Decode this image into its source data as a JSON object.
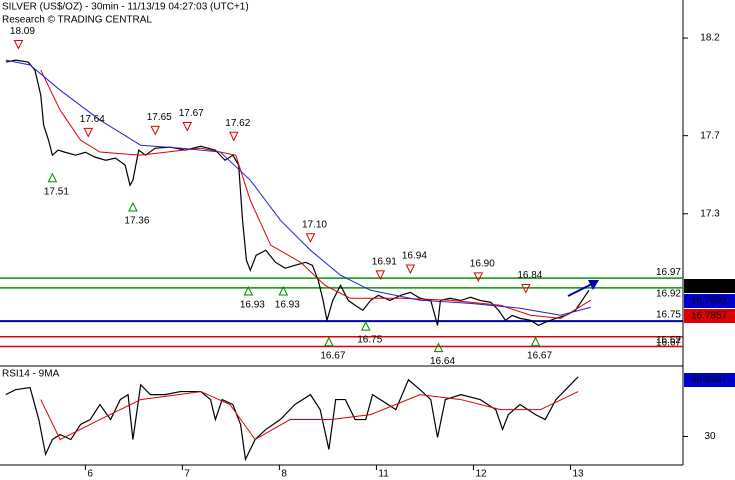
{
  "chart_data": [
    {
      "type": "line",
      "title": "SILVER (US$/OZ) - 30min - 11/13/19 04:27:03 (UTC+1)",
      "subtitle": "Research © TRADING CENTRAL",
      "xlim": [
        -0.88,
        6.16
      ],
      "ylim": [
        16.52,
        18.395
      ],
      "yticks": [
        18.2,
        17.7,
        17.3
      ],
      "series": [
        {
          "color": "#000000",
          "x": [
            -0.82,
            -0.72,
            -0.59,
            -0.52,
            -0.46,
            -0.43,
            -0.38,
            -0.34,
            -0.28,
            -0.21,
            -0.1,
            0.0,
            0.1,
            0.21,
            0.31,
            0.41,
            0.46,
            0.49,
            0.55,
            0.62,
            0.72,
            0.88,
            1.03,
            1.19,
            1.34,
            1.44,
            1.52,
            1.58,
            1.62,
            1.66,
            1.7,
            1.76,
            1.86,
            1.96,
            2.06,
            2.16,
            2.27,
            2.34,
            2.4,
            2.45,
            2.49,
            2.55,
            2.63,
            2.71,
            2.78,
            2.86,
            2.94,
            3.02,
            3.14,
            3.25,
            3.35,
            3.45,
            3.56,
            3.63,
            3.66,
            3.76,
            3.87,
            3.97,
            4.07,
            4.18,
            4.26,
            4.33,
            4.4,
            4.48,
            4.59,
            4.67,
            4.74,
            4.85,
            4.95,
            5.05,
            5.12,
            5.19
          ],
          "values": [
            18.077,
            18.087,
            18.077,
            18.036,
            17.908,
            17.754,
            17.677,
            17.6,
            17.626,
            17.615,
            17.6,
            17.615,
            17.59,
            17.574,
            17.585,
            17.549,
            17.446,
            17.472,
            17.626,
            17.6,
            17.636,
            17.641,
            17.626,
            17.646,
            17.626,
            17.574,
            17.6,
            17.549,
            17.267,
            17.062,
            17.01,
            17.087,
            17.113,
            17.051,
            17.021,
            17.036,
            17.051,
            17.036,
            16.959,
            16.856,
            16.754,
            16.856,
            16.933,
            16.856,
            16.831,
            16.805,
            16.856,
            16.882,
            16.856,
            16.882,
            16.897,
            16.867,
            16.856,
            16.728,
            16.856,
            16.867,
            16.856,
            16.872,
            16.856,
            16.846,
            16.805,
            16.754,
            16.779,
            16.764,
            16.754,
            16.728,
            16.744,
            16.764,
            16.779,
            16.805,
            16.856,
            16.908
          ]
        },
        {
          "color": "#dd0000",
          "x": [
            -0.46,
            -0.26,
            -0.05,
            0.15,
            0.57,
            1.19,
            1.55,
            1.7,
            1.91,
            2.22,
            2.47,
            2.73,
            3.25,
            3.76,
            4.28,
            4.59,
            4.9,
            5.21
          ],
          "values": [
            18.036,
            17.831,
            17.677,
            17.616,
            17.6,
            17.636,
            17.6,
            17.369,
            17.139,
            17.051,
            16.933,
            16.867,
            16.867,
            16.857,
            16.831,
            16.78,
            16.764,
            16.857
          ]
        },
        {
          "color": "#2222cc",
          "x": [
            -0.82,
            -0.57,
            -0.26,
            0.15,
            0.57,
            0.98,
            1.39,
            1.7,
            2.01,
            2.32,
            2.63,
            2.94,
            3.45,
            3.97,
            4.48,
            4.9,
            5.21
          ],
          "values": [
            18.087,
            18.062,
            17.933,
            17.78,
            17.651,
            17.636,
            17.616,
            17.472,
            17.267,
            17.113,
            16.985,
            16.908,
            16.857,
            16.841,
            16.816,
            16.78,
            16.821
          ]
        }
      ],
      "levels": {
        "values": [
          16.97,
          16.92,
          16.75,
          16.67,
          16.62
        ],
        "colors": [
          "#009900",
          "#009900",
          "#0000aa",
          "#dd0000",
          "#dd0000"
        ]
      },
      "highs": {
        "x": [
          -0.69,
          0.03,
          0.72,
          1.05,
          1.53,
          2.32,
          3.04,
          3.35,
          4.05,
          4.54
        ],
        "values": [
          18.09,
          17.64,
          17.65,
          17.67,
          17.62,
          17.1,
          16.91,
          16.94,
          16.9,
          16.84
        ],
        "value_labels": [
          "18.09",
          "17.64",
          "17.65",
          "17.67",
          "17.62",
          "17.10",
          "16.91",
          "16.94",
          "16.90",
          "16.84"
        ],
        "color": "#dd0000"
      },
      "lows": {
        "x": [
          -0.34,
          0.49,
          1.68,
          2.04,
          2.51,
          2.89,
          3.64,
          4.64
        ],
        "values": [
          17.51,
          17.36,
          16.93,
          16.93,
          16.67,
          16.75,
          16.64,
          16.67
        ],
        "value_labels": [
          "17.51",
          "17.36",
          "16.93",
          "16.93",
          "16.67",
          "16.75",
          "16.64",
          "16.67"
        ],
        "color": "#008800"
      },
      "last_values": {
        "values": [
          16.841,
          16.7892,
          16.7857
        ],
        "colors": [
          "#000000",
          "#0000cc",
          "#dd0000"
        ]
      }
    },
    {
      "type": "line",
      "title": "RSI14 - 9MA",
      "xlim": [
        -0.88,
        6.16
      ],
      "xticks": [
        {
          "value": 0,
          "label": "6"
        },
        {
          "value": 1,
          "label": "7"
        },
        {
          "value": 2,
          "label": "8"
        },
        {
          "value": 3,
          "label": "11"
        },
        {
          "value": 4,
          "label": "12"
        },
        {
          "value": 5,
          "label": "13"
        }
      ],
      "ylim": [
        15,
        66
      ],
      "yticks": [
        30
      ],
      "series": [
        {
          "color": "#000000",
          "x": [
            -0.82,
            -0.72,
            -0.57,
            -0.48,
            -0.41,
            -0.34,
            -0.26,
            -0.15,
            -0.05,
            0.05,
            0.15,
            0.26,
            0.36,
            0.44,
            0.49,
            0.57,
            0.67,
            0.82,
            0.98,
            1.19,
            1.29,
            1.34,
            1.41,
            1.52,
            1.6,
            1.65,
            1.75,
            1.86,
            2.01,
            2.16,
            2.32,
            2.42,
            2.51,
            2.58,
            2.68,
            2.78,
            2.89,
            2.96,
            3.04,
            3.2,
            3.33,
            3.45,
            3.56,
            3.63,
            3.71,
            3.87,
            4.07,
            4.23,
            4.3,
            4.36,
            4.48,
            4.64,
            4.74,
            4.85,
            4.95,
            5.08
          ],
          "values": [
            52.0,
            54.6,
            55.7,
            38.9,
            20.6,
            28.4,
            31.0,
            28.4,
            36.3,
            38.9,
            46.8,
            38.9,
            49.4,
            52.0,
            28.4,
            57.2,
            52.0,
            52.0,
            53.6,
            53.6,
            49.4,
            38.9,
            49.4,
            46.8,
            36.3,
            18.0,
            28.4,
            33.7,
            38.9,
            46.8,
            52.0,
            44.1,
            23.2,
            49.4,
            49.4,
            38.9,
            38.9,
            52.0,
            49.4,
            44.1,
            59.8,
            54.6,
            49.4,
            29.5,
            49.4,
            52.0,
            49.4,
            44.1,
            33.7,
            41.5,
            46.8,
            41.5,
            38.9,
            49.4,
            54.6,
            61.4
          ]
        },
        {
          "color": "#dd0000",
          "x": [
            -0.46,
            -0.26,
            0.15,
            0.57,
            1.19,
            1.49,
            1.75,
            2.11,
            2.53,
            2.94,
            3.45,
            3.87,
            4.28,
            4.69,
            5.08
          ],
          "values": [
            49.4,
            28.4,
            38.9,
            49.4,
            53.6,
            46.8,
            28.4,
            38.9,
            38.9,
            41.5,
            52.0,
            49.4,
            44.1,
            44.1,
            53.6
          ]
        }
      ],
      "last_values": {
        "values": [
          59.8397
        ],
        "colors": [
          "#0000cc"
        ]
      }
    }
  ]
}
